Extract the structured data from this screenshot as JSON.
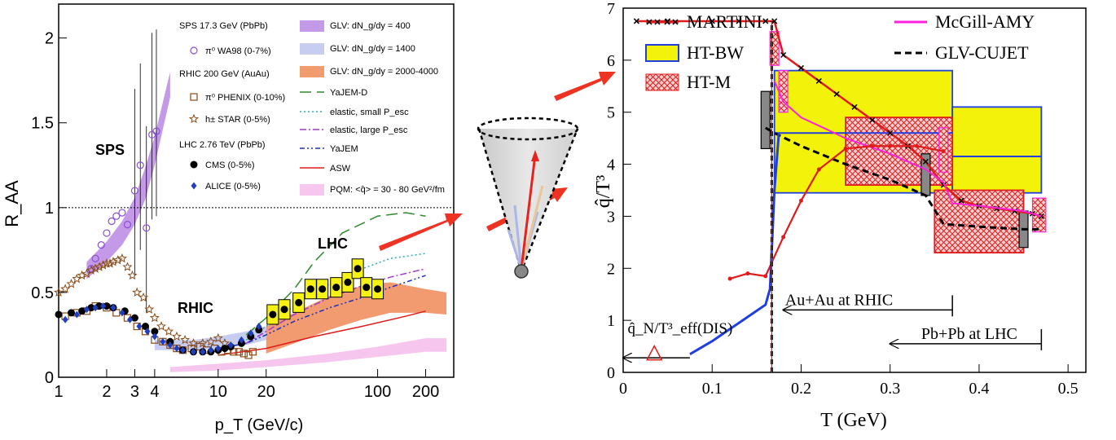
{
  "left_chart": {
    "type": "scatter",
    "xlabel": "p_T (GeV/c)",
    "ylabel": "R_AA",
    "xscale": "log",
    "xlim": [
      1,
      300
    ],
    "ylim": [
      0,
      2.2
    ],
    "xtick_labels": [
      {
        "v": 1,
        "t": "1"
      },
      {
        "v": 2,
        "t": "2"
      },
      {
        "v": 3,
        "t": "3"
      },
      {
        "v": 4,
        "t": "4"
      },
      {
        "v": 10,
        "t": "10"
      },
      {
        "v": 20,
        "t": "20"
      },
      {
        "v": 100,
        "t": "100"
      },
      {
        "v": 200,
        "t": "200"
      }
    ],
    "ytick_labels": [
      {
        "v": 0,
        "t": "0"
      },
      {
        "v": 0.5,
        "t": "0.5"
      },
      {
        "v": 1,
        "t": "1"
      },
      {
        "v": 1.5,
        "t": "1.5"
      },
      {
        "v": 2,
        "t": "2"
      }
    ],
    "reference_line": 1,
    "region_labels": {
      "sps": {
        "text": "SPS",
        "color": "#7b55c4"
      },
      "rhic": {
        "text": "RHIC",
        "color": "#8a4b16"
      },
      "lhc": {
        "text": "LHC",
        "color": "#000000"
      }
    },
    "legend_left": [
      {
        "kind": "header",
        "text": "SPS 17.3 GeV (PbPb)"
      },
      {
        "kind": "entry",
        "marker": "open-circle",
        "color": "#8a4fd6",
        "text": "π⁰ WA98 (0-7%)"
      },
      {
        "kind": "header",
        "text": "RHIC 200 GeV (AuAu)"
      },
      {
        "kind": "entry",
        "marker": "open-square",
        "color": "#8a4b16",
        "text": "π⁰ PHENIX (0-10%)"
      },
      {
        "kind": "entry",
        "marker": "star",
        "color": "#8a4b16",
        "text": "h± STAR (0-5%)"
      },
      {
        "kind": "header",
        "text": "LHC 2.76 TeV (PbPb)"
      },
      {
        "kind": "entry",
        "marker": "filled-circle",
        "color": "#000000",
        "text": "CMS (0-5%)"
      },
      {
        "kind": "entry",
        "marker": "diamond",
        "color": "#1f3fbf",
        "text": "ALICE (0-5%)"
      }
    ],
    "legend_right": [
      {
        "style": "band",
        "color": "#c49ae8",
        "text": "GLV: dN_g/dy = 400"
      },
      {
        "style": "band",
        "color": "#c6cdf0",
        "text": "GLV: dN_g/dy = 1400"
      },
      {
        "style": "band",
        "color": "#f29a70",
        "text": "GLV: dN_g/dy = 2000-4000"
      },
      {
        "style": "longdash",
        "color": "#2d8a2d",
        "text": "YaJEM-D"
      },
      {
        "style": "dot",
        "color": "#29b0b0",
        "text": "elastic, small P_esc"
      },
      {
        "style": "dashdot",
        "color": "#a23ad0",
        "text": "elastic, large P_esc"
      },
      {
        "style": "dashdotdot",
        "color": "#1f2fbf",
        "text": "YaJEM"
      },
      {
        "style": "solid",
        "color": "#e01b1b",
        "text": "ASW"
      },
      {
        "style": "band",
        "color": "#f7c6ef",
        "text": "PQM: <q̂> = 30 - 80 GeV²/fm"
      }
    ],
    "series": [
      {
        "name": "π⁰ WA98 (0-7%)",
        "marker": "open-circle",
        "color": "#8a4fd6",
        "x": [
          1.6,
          1.7,
          1.85,
          2.0,
          2.15,
          2.3,
          2.5,
          2.7,
          3.0,
          3.25,
          3.55,
          3.85,
          4.1
        ],
        "y": [
          0.64,
          0.7,
          0.78,
          0.85,
          0.92,
          0.95,
          0.97,
          0.9,
          1.1,
          1.25,
          0.88,
          1.43,
          1.45
        ]
      },
      {
        "name": "π⁰ PHENIX (0-10%)",
        "marker": "open-square",
        "color": "#8a4b16",
        "x": [
          1.1,
          1.3,
          1.5,
          1.7,
          2.0,
          2.3,
          2.7,
          3.1,
          3.5,
          4.0,
          4.5,
          5.0,
          5.5,
          6.0,
          6.8,
          7.7,
          8.5,
          9.5,
          10.5,
          11.5,
          12.5,
          13.5,
          14.5,
          15.5,
          16.5
        ],
        "y": [
          0.36,
          0.38,
          0.39,
          0.42,
          0.41,
          0.38,
          0.35,
          0.3,
          0.27,
          0.22,
          0.21,
          0.19,
          0.17,
          0.16,
          0.17,
          0.18,
          0.16,
          0.17,
          0.15,
          0.16,
          0.15,
          0.15,
          0.14,
          0.13,
          0.15
        ]
      },
      {
        "name": "h± STAR (0-5%)",
        "marker": "star",
        "color": "#8a4b16",
        "x": [
          1.0,
          1.1,
          1.2,
          1.3,
          1.4,
          1.5,
          1.6,
          1.7,
          1.8,
          1.9,
          2.0,
          2.1,
          2.2,
          2.35,
          2.5,
          2.7,
          2.9,
          3.1,
          3.4,
          3.7,
          4.0,
          4.4,
          4.9,
          5.5,
          6.2,
          7.0,
          8.0,
          9.0,
          10.0,
          11.0
        ],
        "y": [
          0.5,
          0.52,
          0.55,
          0.58,
          0.6,
          0.61,
          0.63,
          0.64,
          0.65,
          0.66,
          0.67,
          0.67,
          0.68,
          0.69,
          0.7,
          0.65,
          0.6,
          0.5,
          0.47,
          0.4,
          0.35,
          0.3,
          0.27,
          0.24,
          0.22,
          0.2,
          0.2,
          0.21,
          0.23,
          0.2
        ]
      },
      {
        "name": "CMS (0-5%)",
        "marker": "filled-circle",
        "color": "#000000",
        "x": [
          1.0,
          1.2,
          1.4,
          1.6,
          1.8,
          2.0,
          2.2,
          2.6,
          3.0,
          3.5,
          4.0,
          5.0,
          6.0,
          7.0,
          8.0,
          9.0,
          10.0,
          11.0,
          12.0,
          14.0,
          16.0,
          18.0,
          22.0,
          26.0,
          32.0,
          38.0,
          45.0,
          55.0,
          65.0,
          75.0,
          85.0,
          100.0
        ],
        "y": [
          0.37,
          0.38,
          0.39,
          0.41,
          0.42,
          0.42,
          0.41,
          0.39,
          0.35,
          0.3,
          0.27,
          0.21,
          0.16,
          0.15,
          0.15,
          0.15,
          0.16,
          0.17,
          0.18,
          0.2,
          0.24,
          0.28,
          0.37,
          0.4,
          0.44,
          0.52,
          0.52,
          0.53,
          0.56,
          0.64,
          0.53,
          0.52
        ]
      },
      {
        "name": "ALICE (0-5%)",
        "marker": "diamond",
        "color": "#1f3fbf",
        "x": [
          1.1,
          1.3,
          1.5,
          1.7,
          1.9,
          2.2,
          2.5,
          2.8,
          3.2,
          3.6,
          4.0,
          4.5,
          5.0,
          5.5,
          6.0,
          7.0,
          8.0,
          9.0,
          10.0,
          12.0,
          14.0,
          16.0,
          18.0
        ],
        "y": [
          0.34,
          0.37,
          0.4,
          0.41,
          0.42,
          0.41,
          0.38,
          0.34,
          0.3,
          0.27,
          0.24,
          0.21,
          0.19,
          0.17,
          0.16,
          0.15,
          0.15,
          0.16,
          0.17,
          0.19,
          0.22,
          0.26,
          0.3
        ]
      }
    ],
    "bands": [
      {
        "name": "GLV: dN_g/dy = 400",
        "color": "#c49ae8",
        "x": [
          1.5,
          2.0,
          2.5,
          3.0,
          3.5,
          4.0,
          5.0
        ],
        "ylow": [
          0.58,
          0.68,
          0.78,
          0.9,
          1.05,
          1.25,
          1.65
        ],
        "yhigh": [
          0.68,
          0.8,
          0.92,
          1.06,
          1.24,
          1.42,
          1.8
        ]
      },
      {
        "name": "GLV: dN_g/dy = 1400",
        "color": "#c6cdf0",
        "x": [
          4.0,
          5.0,
          7.0,
          10.0,
          15.0,
          20.0
        ],
        "ylow": [
          0.16,
          0.16,
          0.16,
          0.17,
          0.19,
          0.22
        ],
        "yhigh": [
          0.22,
          0.22,
          0.22,
          0.24,
          0.27,
          0.3
        ]
      },
      {
        "name": "GLV: dN_g/dy = 2000-4000",
        "color": "#f29a70",
        "x": [
          20.0,
          30.0,
          50.0,
          80.0,
          120.0,
          200.0,
          270.0
        ],
        "ylow": [
          0.14,
          0.2,
          0.28,
          0.34,
          0.38,
          0.38,
          0.37
        ],
        "yhigh": [
          0.3,
          0.38,
          0.48,
          0.54,
          0.56,
          0.52,
          0.5
        ]
      },
      {
        "name": "PQM: <q̂> = 30 - 80 GeV²/fm",
        "color": "#f7c6ef",
        "x": [
          5.0,
          10.0,
          20.0,
          50.0,
          100.0,
          200.0,
          270.0
        ],
        "ylow": [
          0.03,
          0.04,
          0.06,
          0.09,
          0.12,
          0.15,
          0.15
        ],
        "yhigh": [
          0.06,
          0.08,
          0.1,
          0.14,
          0.18,
          0.23,
          0.23
        ]
      }
    ],
    "curves": [
      {
        "name": "YaJEM-D",
        "style": "longdash",
        "color": "#2d8a2d",
        "x": [
          15.0,
          20.0,
          30.0,
          40.0,
          60.0,
          100.0,
          150.0,
          200.0
        ],
        "y": [
          0.25,
          0.35,
          0.52,
          0.68,
          0.85,
          0.95,
          0.97,
          0.95
        ]
      },
      {
        "name": "elastic, small P_esc",
        "style": "dot",
        "color": "#29b0b0",
        "x": [
          15.0,
          20.0,
          30.0,
          50.0,
          80.0,
          120.0,
          200.0
        ],
        "y": [
          0.22,
          0.3,
          0.42,
          0.55,
          0.64,
          0.7,
          0.73
        ]
      },
      {
        "name": "elastic, large P_esc",
        "style": "dashdot",
        "color": "#a23ad0",
        "x": [
          15.0,
          20.0,
          30.0,
          50.0,
          80.0,
          120.0,
          200.0
        ],
        "y": [
          0.2,
          0.27,
          0.37,
          0.47,
          0.54,
          0.59,
          0.64
        ]
      },
      {
        "name": "YaJEM",
        "style": "dashdotdot",
        "color": "#1f2fbf",
        "x": [
          10.0,
          15.0,
          20.0,
          30.0,
          50.0,
          80.0,
          120.0,
          200.0
        ],
        "y": [
          0.17,
          0.2,
          0.25,
          0.33,
          0.41,
          0.47,
          0.53,
          0.6
        ]
      },
      {
        "name": "ASW",
        "style": "solid",
        "color": "#e01b1b",
        "x": [
          10.0,
          20.0,
          40.0,
          80.0,
          150.0,
          200.0
        ],
        "y": [
          0.13,
          0.17,
          0.24,
          0.3,
          0.36,
          0.39
        ]
      }
    ]
  },
  "right_chart": {
    "type": "line",
    "xlabel": "T (GeV)",
    "ylabel": "q̂/T³",
    "xlim": [
      0,
      0.52
    ],
    "ylim": [
      0,
      7
    ],
    "xtick_labels": [
      {
        "v": 0,
        "t": "0"
      },
      {
        "v": 0.1,
        "t": "0.1"
      },
      {
        "v": 0.2,
        "t": "0.2"
      },
      {
        "v": 0.3,
        "t": "0.3"
      },
      {
        "v": 0.4,
        "t": "0.4"
      },
      {
        "v": 0.5,
        "t": "0.5"
      }
    ],
    "ytick_labels": [
      {
        "v": 0,
        "t": "0"
      },
      {
        "v": 1,
        "t": "1"
      },
      {
        "v": 2,
        "t": "2"
      },
      {
        "v": 3,
        "t": "3"
      },
      {
        "v": 4,
        "t": "4"
      },
      {
        "v": 5,
        "t": "5"
      },
      {
        "v": 6,
        "t": "6"
      },
      {
        "v": 7,
        "t": "7"
      }
    ],
    "legend": [
      {
        "text": "MARTINI",
        "style": "line-x",
        "color": "#e01b1b"
      },
      {
        "text": "HT-BW",
        "style": "box",
        "color": "#f2f20a"
      },
      {
        "text": "HT-M",
        "style": "hatch",
        "color": "#e01b1b"
      },
      {
        "text": "McGill-AMY",
        "style": "line",
        "color": "#ff22dd"
      },
      {
        "text": "GLV-CUJET",
        "style": "dash",
        "color": "#000000"
      }
    ],
    "series": [
      {
        "name": "MARTINI",
        "color": "#e01b1b",
        "x": [
          0.015,
          0.05,
          0.1,
          0.13,
          0.16,
          0.17,
          0.18,
          0.2,
          0.22,
          0.24,
          0.26,
          0.28,
          0.3,
          0.32,
          0.34,
          0.36,
          0.38,
          0.4,
          0.42,
          0.44,
          0.46,
          0.47
        ],
        "y": [
          6.75,
          6.75,
          6.75,
          6.75,
          6.75,
          6.75,
          6.1,
          5.85,
          5.6,
          5.35,
          5.1,
          4.85,
          4.6,
          4.35,
          4.05,
          3.6,
          3.3,
          3.2,
          3.15,
          3.1,
          3.05,
          3.0
        ]
      },
      {
        "name": "GLV-CUJET",
        "color": "#000000",
        "x": [
          0.16,
          0.17,
          0.2,
          0.25,
          0.3,
          0.34,
          0.36,
          0.4,
          0.45,
          0.47
        ],
        "y": [
          4.7,
          4.6,
          4.35,
          4.0,
          3.7,
          3.4,
          2.85,
          2.8,
          2.75,
          2.75
        ]
      },
      {
        "name": "McGill-AMY",
        "color": "#ff22dd",
        "x": [
          0.17,
          0.18,
          0.2,
          0.25,
          0.3,
          0.34,
          0.36,
          0.37,
          0.4,
          0.45,
          0.47
        ],
        "y": [
          5.6,
          5.2,
          4.9,
          4.5,
          4.2,
          3.9,
          3.65,
          3.25,
          3.2,
          3.1,
          3.0
        ]
      },
      {
        "name": "HT-M red",
        "color": "#e01b1b",
        "x": [
          0.12,
          0.14,
          0.16,
          0.18,
          0.2,
          0.22,
          0.25,
          0.28,
          0.3,
          0.33,
          0.36
        ],
        "y": [
          1.8,
          1.9,
          1.85,
          2.6,
          3.3,
          3.9,
          4.3,
          4.35,
          4.35,
          4.35,
          4.25
        ]
      },
      {
        "name": "Blue curve",
        "color": "#1f3fe0",
        "x": [
          0.075,
          0.1,
          0.13,
          0.16,
          0.165,
          0.17,
          0.175
        ],
        "y": [
          0.35,
          0.6,
          0.95,
          1.3,
          1.6,
          3.5,
          4.6
        ]
      }
    ],
    "boxes": [
      {
        "name": "HT-BW RHIC",
        "x": [
          0.17,
          0.37
        ],
        "y": [
          3.45,
          5.8
        ],
        "fill": "#f2f20a",
        "stroke": "#1f3fe0"
      },
      {
        "name": "HT-BW LHC",
        "x": [
          0.37,
          0.47
        ],
        "y": [
          3.45,
          5.1
        ],
        "fill": "#f2f20a",
        "stroke": "#1f3fe0"
      },
      {
        "name": "HT-M RHIC",
        "x": [
          0.25,
          0.37
        ],
        "y": [
          3.6,
          4.9
        ],
        "fill": "hatch",
        "stroke": "#e01b1b"
      },
      {
        "name": "HT-M LHC",
        "x": [
          0.35,
          0.45
        ],
        "y": [
          2.3,
          3.5
        ],
        "fill": "hatch",
        "stroke": "#e01b1b"
      }
    ],
    "annotations": [
      {
        "text": "Au+Au at RHIC",
        "from": [
          0.37,
          1.2
        ],
        "to": [
          0.18,
          1.2
        ]
      },
      {
        "text": "Pb+Pb at LHC",
        "from": [
          0.47,
          0.55
        ],
        "to": [
          0.3,
          0.55
        ]
      },
      {
        "text": "q̂_N/T³_eff(DIS)",
        "marker_x": 0.035,
        "marker_y": 0.35
      }
    ]
  },
  "cone": {
    "label": "jet cone"
  }
}
